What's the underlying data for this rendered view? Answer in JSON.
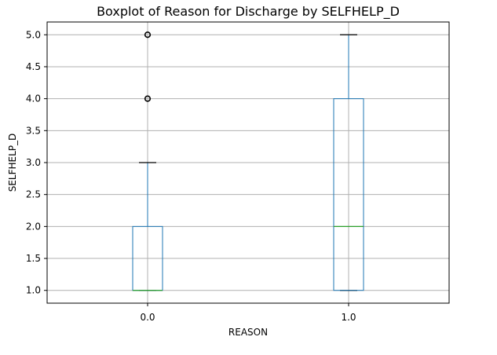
{
  "chart_data": {
    "type": "boxplot",
    "title": "Boxplot of Reason for Discharge by SELFHELP_D",
    "xlabel": "REASON",
    "ylabel": "SELFHELP_D",
    "ylim": [
      0.8,
      5.2
    ],
    "yticks": [
      "1.0",
      "1.5",
      "2.0",
      "2.5",
      "3.0",
      "3.5",
      "4.0",
      "4.5",
      "5.0"
    ],
    "grid": true,
    "categories": [
      "0.0",
      "1.0"
    ],
    "boxes": [
      {
        "category": "0.0",
        "whisker_low": 1.0,
        "q1": 1.0,
        "median": 1.0,
        "q3": 2.0,
        "whisker_high": 3.0,
        "outliers": [
          4.0,
          5.0
        ]
      },
      {
        "category": "1.0",
        "whisker_low": 1.0,
        "q1": 1.0,
        "median": 2.0,
        "q3": 4.0,
        "whisker_high": 5.0,
        "outliers": []
      }
    ],
    "colors": {
      "box": "#1f77b4",
      "median": "#2ca02c",
      "whisker": "#000000",
      "grid": "#b0b0b0"
    }
  }
}
